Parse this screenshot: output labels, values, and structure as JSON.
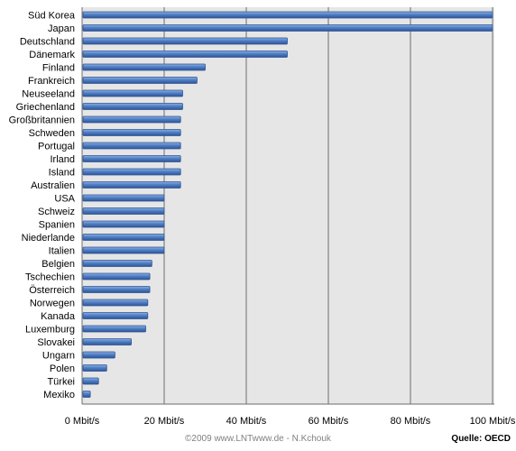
{
  "chart_data": {
    "type": "bar",
    "orientation": "horizontal",
    "categories": [
      "Süd Korea",
      "Japan",
      "Deutschland",
      "Dänemark",
      "Finland",
      "Frankreich",
      "Neuseeland",
      "Griechenland",
      "Großbritannien",
      "Schweden",
      "Portugal",
      "Irland",
      "Island",
      "Australien",
      "USA",
      "Schweiz",
      "Spanien",
      "Niederlande",
      "Italien",
      "Belgien",
      "Tschechien",
      "Österreich",
      "Norwegen",
      "Kanada",
      "Luxemburg",
      "Slovakei",
      "Ungarn",
      "Polen",
      "Türkei",
      "Mexiko"
    ],
    "values": [
      100,
      100,
      50,
      50,
      30,
      28,
      24.5,
      24.5,
      24,
      24,
      24,
      24,
      24,
      24,
      20,
      20,
      20,
      20,
      20,
      17,
      16.5,
      16.5,
      16,
      16,
      15.5,
      12,
      8,
      6,
      4,
      2
    ],
    "xlim": [
      0,
      100
    ],
    "x_ticks": [
      0,
      20,
      40,
      60,
      80,
      100
    ],
    "x_tick_labels": [
      "0 Mbit/s",
      "20 Mbit/s",
      "40 Mbit/s",
      "60 Mbit/s",
      "80 Mbit/s",
      "100 Mbit/s"
    ],
    "grid": true,
    "legend": false,
    "colors": {
      "bar": "#4f7fc3",
      "bar_edge": "#2f5496",
      "plot_bg": "#e6e6e6",
      "grid": "#6e6e6e"
    }
  },
  "credit": "©2009 www.LNTwww.de - N.Kchouk",
  "source": "Quelle: OECD"
}
